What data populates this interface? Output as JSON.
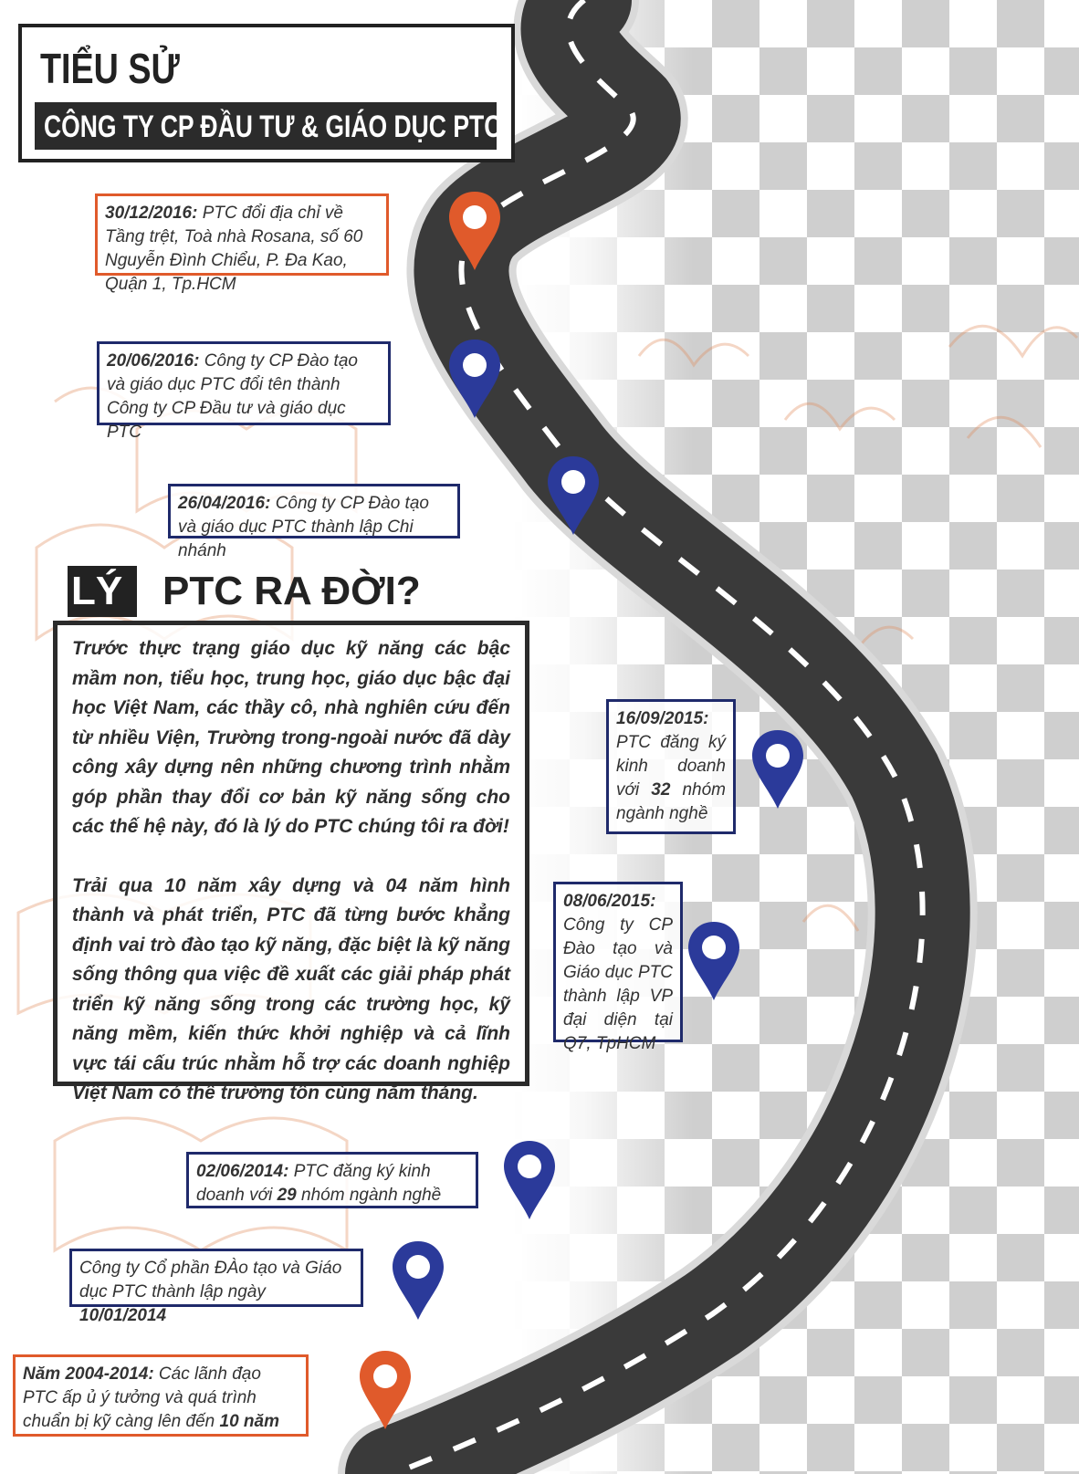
{
  "header": {
    "title": "TIỂU SỬ",
    "subtitle": "CÔNG TY CP ĐẦU TƯ & GIÁO DỤC PTC"
  },
  "timeline": [
    {
      "date": "30/12/2016:",
      "text": " PTC đổi địa chỉ về Tầng trệt, Toà nhà Rosana, số 60 Nguyễn Đình Chiểu, P. Đa Kao, Quận 1, Tp.HCM",
      "color": "orange"
    },
    {
      "date": "20/06/2016:",
      "text": " Công ty CP Đào tạo và giáo dục PTC đổi tên thành Công ty CP Đầu tư và giáo dục PTC",
      "color": "navy"
    },
    {
      "date": "26/04/2016:",
      "text": " Công ty CP Đào tạo và giáo dục PTC thành lập Chi nhánh",
      "color": "navy"
    },
    {
      "date": "16/09/2015:",
      "text_before": " PTC đăng ký kinh doanh với ",
      "num": "32",
      "text_after": " nhóm ngành nghề",
      "color": "navy"
    },
    {
      "date": "08/06/2015:",
      "text": " Công ty CP Đào tạo và Giáo dục PTC thành lập VP đại diện tại Q7, TpHCM",
      "color": "navy"
    },
    {
      "date": "02/06/2014:",
      "text_before": " PTC đăng ký kinh doanh với ",
      "num": "29",
      "text_after": " nhóm ngành nghề",
      "color": "navy"
    },
    {
      "text_before": "Công ty Cổ phần ĐÀo tạo và Giáo dục PTC thành lập ngày ",
      "num": "10/01/2014",
      "color": "navy"
    },
    {
      "date": "Năm 2004-2014:",
      "text_before": " Các lãnh đạo PTC ấp ủ ý tưởng và quá trình chuẩn bị kỹ càng lên đến ",
      "num": "10 năm",
      "color": "orange"
    }
  ],
  "reason": {
    "heading_dark": "LÝ DO",
    "heading_light": "PTC RA ĐỜI?",
    "paragraph_1": "Trước thực trạng giáo dục kỹ năng các bậc mầm non, tiểu học, trung học, giáo dục bậc đại học Việt Nam, các thầy cô, nhà nghiên cứu đến từ nhiều Viện, Trường trong-ngoài nước đã dày công xây dựng nên những chương trình nhằm góp phần thay đổi cơ bản kỹ năng sống cho các thế hệ này, đó là lý do PTC chúng tôi ra đời!",
    "paragraph_2": "Trải qua 10 năm xây dựng và 04 năm hình thành và phát triển, PTC đã từng bước khẳng định vai trò đào tạo kỹ năng, đặc biệt là kỹ năng sống thông qua việc đề xuất các giải pháp phát triển kỹ năng sống trong các trường học, kỹ năng mềm, kiến thức khởi nghiệp và cả lĩnh vực tái cấu trúc nhằm hỗ trợ các doanh nghiệp Việt Nam có thể trường tồn cùng năm tháng."
  },
  "colors": {
    "orange": "#e05a2b",
    "navy": "#1f2a6b",
    "road": "#3a3a3a",
    "road_edge": "#cfcfcf"
  },
  "icons": [
    "map-pin-icon",
    "road-illustration",
    "book-doodle"
  ]
}
